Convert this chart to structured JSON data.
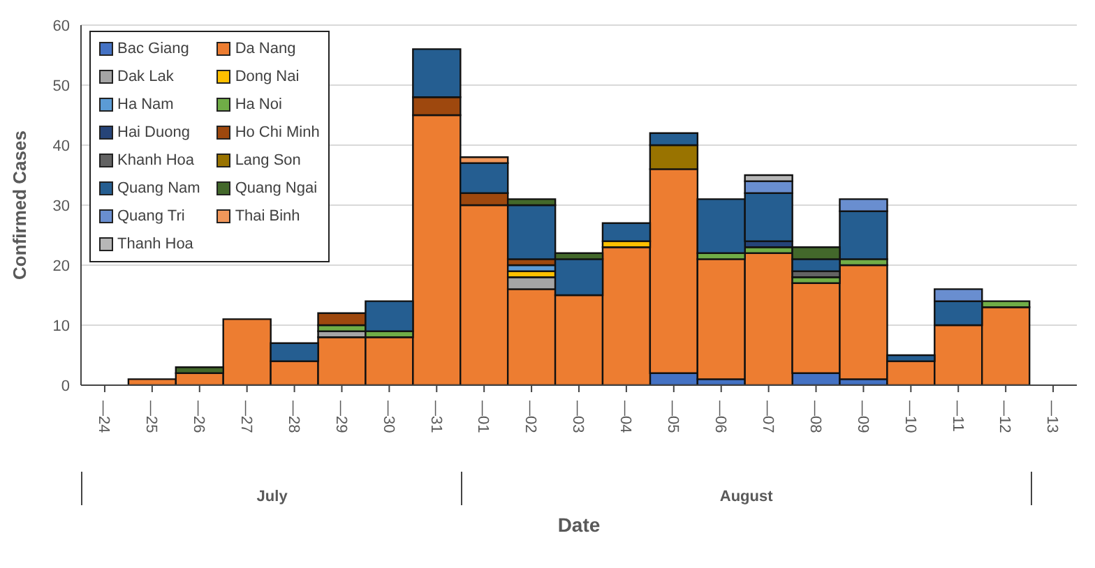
{
  "chart_data": {
    "type": "bar",
    "stacked": true,
    "xlabel": "Date",
    "ylabel": "Confirmed Cases",
    "categories": [
      "—24",
      "—25",
      "—26",
      "—27",
      "—28",
      "—29",
      "—30",
      "—31",
      "—01",
      "—02",
      "—03",
      "—04",
      "—05",
      "—06",
      "—07",
      "—08",
      "—09",
      "—10",
      "—11",
      "—12",
      "—13"
    ],
    "annotations": [
      "July",
      "August"
    ],
    "ylim": [
      0,
      60
    ],
    "yticks": [
      0,
      10,
      20,
      30,
      40,
      50,
      60
    ],
    "grid": "y",
    "legend": "top left",
    "series": [
      {
        "name": "Bac Giang",
        "color": "#4472c4",
        "values": [
          0,
          0,
          0,
          0,
          0,
          0,
          0,
          0,
          0,
          0,
          0,
          0,
          2,
          1,
          0,
          2,
          1,
          0,
          0,
          0,
          0
        ]
      },
      {
        "name": "Da Nang",
        "color": "#ed7d31",
        "values": [
          0,
          1,
          2,
          11,
          4,
          8,
          8,
          45,
          30,
          16,
          15,
          23,
          34,
          20,
          22,
          15,
          19,
          4,
          10,
          13,
          0
        ]
      },
      {
        "name": "Dak Lak",
        "color": "#a5a5a5",
        "values": [
          0,
          0,
          0,
          0,
          0,
          1,
          0,
          0,
          0,
          2,
          0,
          0,
          0,
          0,
          0,
          0,
          0,
          0,
          0,
          0,
          0
        ]
      },
      {
        "name": "Dong Nai",
        "color": "#ffc000",
        "values": [
          0,
          0,
          0,
          0,
          0,
          0,
          0,
          0,
          0,
          1,
          0,
          1,
          0,
          0,
          0,
          0,
          0,
          0,
          0,
          0,
          0
        ]
      },
      {
        "name": "Ha Nam",
        "color": "#5b9bd5",
        "values": [
          0,
          0,
          0,
          0,
          0,
          0,
          0,
          0,
          0,
          1,
          0,
          0,
          0,
          0,
          0,
          0,
          0,
          0,
          0,
          0,
          0
        ]
      },
      {
        "name": "Ha Noi",
        "color": "#70ad47",
        "values": [
          0,
          0,
          0,
          0,
          0,
          1,
          1,
          0,
          0,
          0,
          0,
          0,
          0,
          1,
          1,
          1,
          1,
          0,
          0,
          1,
          0
        ]
      },
      {
        "name": "Hai Duong",
        "color": "#264478",
        "values": [
          0,
          0,
          0,
          0,
          0,
          0,
          0,
          0,
          0,
          0,
          0,
          0,
          0,
          0,
          1,
          0,
          0,
          0,
          0,
          0,
          0
        ]
      },
      {
        "name": "Ho Chi Minh",
        "color": "#9e480e",
        "values": [
          0,
          0,
          0,
          0,
          0,
          2,
          0,
          3,
          2,
          1,
          0,
          0,
          0,
          0,
          0,
          0,
          0,
          0,
          0,
          0,
          0
        ]
      },
      {
        "name": "Khanh Hoa",
        "color": "#636363",
        "values": [
          0,
          0,
          0,
          0,
          0,
          0,
          0,
          0,
          0,
          0,
          0,
          0,
          0,
          0,
          0,
          1,
          0,
          0,
          0,
          0,
          0
        ]
      },
      {
        "name": "Lang Son",
        "color": "#997300",
        "values": [
          0,
          0,
          0,
          0,
          0,
          0,
          0,
          0,
          0,
          0,
          0,
          0,
          4,
          0,
          0,
          0,
          0,
          0,
          0,
          0,
          0
        ]
      },
      {
        "name": "Quang Nam",
        "color": "#255e91",
        "values": [
          0,
          0,
          0,
          0,
          3,
          0,
          5,
          8,
          5,
          9,
          6,
          3,
          2,
          9,
          8,
          2,
          8,
          1,
          4,
          0,
          0
        ]
      },
      {
        "name": "Quang Ngai",
        "color": "#43682b",
        "values": [
          0,
          0,
          1,
          0,
          0,
          0,
          0,
          0,
          0,
          1,
          1,
          0,
          0,
          0,
          0,
          2,
          0,
          0,
          0,
          0,
          0
        ]
      },
      {
        "name": "Quang Tri",
        "color": "#698ed0",
        "values": [
          0,
          0,
          0,
          0,
          0,
          0,
          0,
          0,
          0,
          0,
          0,
          0,
          0,
          0,
          2,
          0,
          2,
          0,
          2,
          0,
          0
        ]
      },
      {
        "name": "Thai Binh",
        "color": "#f1975a",
        "values": [
          0,
          0,
          0,
          0,
          0,
          0,
          0,
          0,
          1,
          0,
          0,
          0,
          0,
          0,
          0,
          0,
          0,
          0,
          0,
          0,
          0
        ]
      },
      {
        "name": "Thanh Hoa",
        "color": "#b7b7b7",
        "values": [
          0,
          0,
          0,
          0,
          0,
          0,
          0,
          0,
          0,
          0,
          0,
          0,
          0,
          0,
          1,
          0,
          0,
          0,
          0,
          0,
          0
        ]
      }
    ]
  }
}
